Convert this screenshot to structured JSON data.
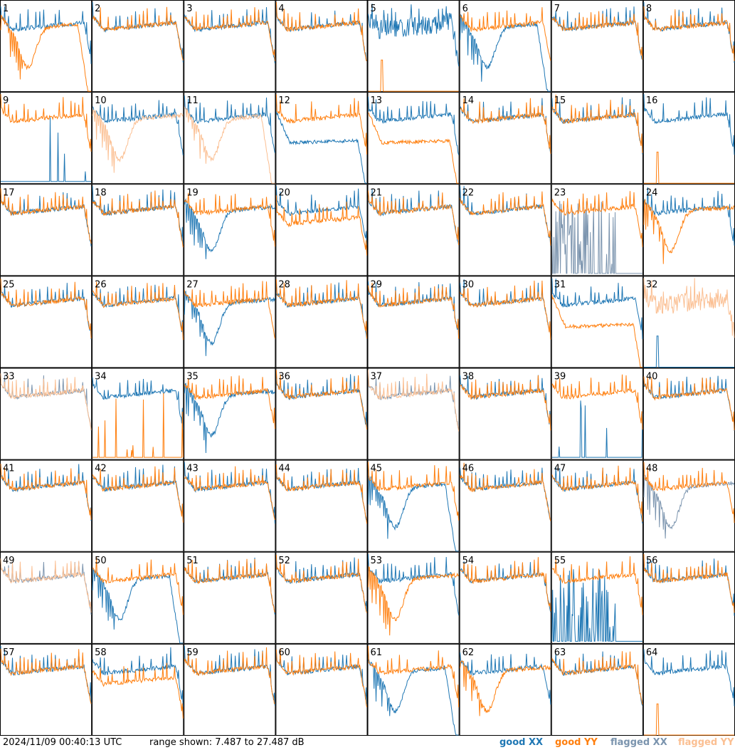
{
  "chart_data": {
    "type": "line",
    "layout": "8x8 small multiples",
    "tiles": [
      {
        "id": "1",
        "xx": "good",
        "yy": "good",
        "xx_shape": "normal",
        "yy_shape": "bumpdrop"
      },
      {
        "id": "2",
        "xx": "good",
        "yy": "good",
        "xx_shape": "normal",
        "yy_shape": "normal"
      },
      {
        "id": "3",
        "xx": "good",
        "yy": "good",
        "xx_shape": "normal",
        "yy_shape": "normal"
      },
      {
        "id": "4",
        "xx": "good",
        "yy": "good",
        "xx_shape": "normal",
        "yy_shape": "normal"
      },
      {
        "id": "5",
        "xx": "good",
        "yy": "good",
        "xx_shape": "noisy",
        "yy_shape": "flatspike"
      },
      {
        "id": "6",
        "xx": "good",
        "yy": "good",
        "xx_shape": "bumpdrop",
        "yy_shape": "normal"
      },
      {
        "id": "7",
        "xx": "good",
        "yy": "good",
        "xx_shape": "normal",
        "yy_shape": "normal"
      },
      {
        "id": "8",
        "xx": "good",
        "yy": "good",
        "xx_shape": "normal",
        "yy_shape": "normal"
      },
      {
        "id": "9",
        "xx": "good",
        "yy": "good",
        "xx_shape": "spikes",
        "yy_shape": "normal"
      },
      {
        "id": "10",
        "xx": "good",
        "yy": "flagged",
        "xx_shape": "normal",
        "yy_shape": "bump"
      },
      {
        "id": "11",
        "xx": "good",
        "yy": "flagged",
        "xx_shape": "normal",
        "yy_shape": "bumpdrop"
      },
      {
        "id": "12",
        "xx": "good",
        "yy": "good",
        "xx_shape": "lowdrop",
        "yy_shape": "normal"
      },
      {
        "id": "13",
        "xx": "good",
        "yy": "good",
        "xx_shape": "normal",
        "yy_shape": "lowdrop"
      },
      {
        "id": "14",
        "xx": "good",
        "yy": "good",
        "xx_shape": "normal",
        "yy_shape": "normal"
      },
      {
        "id": "15",
        "xx": "good",
        "yy": "good",
        "xx_shape": "normal",
        "yy_shape": "normal"
      },
      {
        "id": "16",
        "xx": "good",
        "yy": "good",
        "xx_shape": "normal",
        "yy_shape": "flatspike"
      },
      {
        "id": "17",
        "xx": "good",
        "yy": "good",
        "xx_shape": "normal",
        "yy_shape": "normal"
      },
      {
        "id": "18",
        "xx": "good",
        "yy": "good",
        "xx_shape": "normal",
        "yy_shape": "normal"
      },
      {
        "id": "19",
        "xx": "good",
        "yy": "good",
        "xx_shape": "bump",
        "yy_shape": "normal"
      },
      {
        "id": "20",
        "xx": "good",
        "yy": "good",
        "xx_shape": "normal",
        "yy_shape": "low"
      },
      {
        "id": "21",
        "xx": "good",
        "yy": "good",
        "xx_shape": "normal",
        "yy_shape": "normal"
      },
      {
        "id": "22",
        "xx": "good",
        "yy": "good",
        "xx_shape": "normal",
        "yy_shape": "normal"
      },
      {
        "id": "23",
        "xx": "flagged",
        "yy": "good",
        "xx_shape": "dense",
        "yy_shape": "normal"
      },
      {
        "id": "24",
        "xx": "good",
        "yy": "good",
        "xx_shape": "normal",
        "yy_shape": "bump"
      },
      {
        "id": "25",
        "xx": "good",
        "yy": "good",
        "xx_shape": "normal",
        "yy_shape": "normal"
      },
      {
        "id": "26",
        "xx": "good",
        "yy": "good",
        "xx_shape": "normal",
        "yy_shape": "normal"
      },
      {
        "id": "27",
        "xx": "good",
        "yy": "good",
        "xx_shape": "bump",
        "yy_shape": "normal"
      },
      {
        "id": "28",
        "xx": "good",
        "yy": "good",
        "xx_shape": "normal",
        "yy_shape": "normal"
      },
      {
        "id": "29",
        "xx": "good",
        "yy": "good",
        "xx_shape": "normal",
        "yy_shape": "normal"
      },
      {
        "id": "30",
        "xx": "good",
        "yy": "good",
        "xx_shape": "normal",
        "yy_shape": "normal"
      },
      {
        "id": "31",
        "xx": "good",
        "yy": "good",
        "xx_shape": "normal",
        "yy_shape": "lowdrop"
      },
      {
        "id": "32",
        "xx": "good",
        "yy": "flagged",
        "xx_shape": "flatspike",
        "yy_shape": "noisy"
      },
      {
        "id": "33",
        "xx": "flagged",
        "yy": "flagged",
        "xx_shape": "normal",
        "yy_shape": "normal"
      },
      {
        "id": "34",
        "xx": "good",
        "yy": "good",
        "xx_shape": "normal",
        "yy_shape": "spikes"
      },
      {
        "id": "35",
        "xx": "good",
        "yy": "good",
        "xx_shape": "bump",
        "yy_shape": "normal"
      },
      {
        "id": "36",
        "xx": "good",
        "yy": "good",
        "xx_shape": "normal",
        "yy_shape": "normal"
      },
      {
        "id": "37",
        "xx": "flagged",
        "yy": "flagged",
        "xx_shape": "normal",
        "yy_shape": "normal"
      },
      {
        "id": "38",
        "xx": "good",
        "yy": "good",
        "xx_shape": "normal",
        "yy_shape": "normal"
      },
      {
        "id": "39",
        "xx": "good",
        "yy": "good",
        "xx_shape": "spikes",
        "yy_shape": "normal"
      },
      {
        "id": "40",
        "xx": "good",
        "yy": "good",
        "xx_shape": "normal",
        "yy_shape": "normal"
      },
      {
        "id": "41",
        "xx": "good",
        "yy": "good",
        "xx_shape": "normal",
        "yy_shape": "normal"
      },
      {
        "id": "42",
        "xx": "good",
        "yy": "good",
        "xx_shape": "normal",
        "yy_shape": "normal"
      },
      {
        "id": "43",
        "xx": "good",
        "yy": "good",
        "xx_shape": "normal",
        "yy_shape": "normal"
      },
      {
        "id": "44",
        "xx": "good",
        "yy": "good",
        "xx_shape": "normal",
        "yy_shape": "normal"
      },
      {
        "id": "45",
        "xx": "good",
        "yy": "good",
        "xx_shape": "bumpdrop",
        "yy_shape": "normal"
      },
      {
        "id": "46",
        "xx": "good",
        "yy": "good",
        "xx_shape": "normal",
        "yy_shape": "normal"
      },
      {
        "id": "47",
        "xx": "good",
        "yy": "good",
        "xx_shape": "normal",
        "yy_shape": "normal"
      },
      {
        "id": "48",
        "xx": "flagged",
        "yy": "good",
        "xx_shape": "bump",
        "yy_shape": "normal"
      },
      {
        "id": "49",
        "xx": "flagged",
        "yy": "flagged",
        "xx_shape": "normal",
        "yy_shape": "normal"
      },
      {
        "id": "50",
        "xx": "good",
        "yy": "good",
        "xx_shape": "bumpdrop",
        "yy_shape": "normal"
      },
      {
        "id": "51",
        "xx": "good",
        "yy": "good",
        "xx_shape": "normal",
        "yy_shape": "normal"
      },
      {
        "id": "52",
        "xx": "good",
        "yy": "good",
        "xx_shape": "normal",
        "yy_shape": "normal"
      },
      {
        "id": "53",
        "xx": "good",
        "yy": "good",
        "xx_shape": "normal",
        "yy_shape": "bump"
      },
      {
        "id": "54",
        "xx": "good",
        "yy": "good",
        "xx_shape": "normal",
        "yy_shape": "normal"
      },
      {
        "id": "55",
        "xx": "good",
        "yy": "good",
        "xx_shape": "dense",
        "yy_shape": "normal"
      },
      {
        "id": "56",
        "xx": "good",
        "yy": "good",
        "xx_shape": "normal",
        "yy_shape": "normal"
      },
      {
        "id": "57",
        "xx": "good",
        "yy": "good",
        "xx_shape": "normal",
        "yy_shape": "normal"
      },
      {
        "id": "58",
        "xx": "good",
        "yy": "good",
        "xx_shape": "normal",
        "yy_shape": "low"
      },
      {
        "id": "59",
        "xx": "good",
        "yy": "good",
        "xx_shape": "normal",
        "yy_shape": "normal"
      },
      {
        "id": "60",
        "xx": "good",
        "yy": "good",
        "xx_shape": "normal",
        "yy_shape": "normal"
      },
      {
        "id": "61",
        "xx": "good",
        "yy": "good",
        "xx_shape": "bumpdrop",
        "yy_shape": "normal"
      },
      {
        "id": "62",
        "xx": "good",
        "yy": "good",
        "xx_shape": "normal",
        "yy_shape": "bump"
      },
      {
        "id": "63",
        "xx": "good",
        "yy": "good",
        "xx_shape": "normal",
        "yy_shape": "normal"
      },
      {
        "id": "64",
        "xx": "good",
        "yy": "good",
        "xx_shape": "normal",
        "yy_shape": "flatspike"
      }
    ],
    "range_db": [
      7.487,
      27.487
    ]
  },
  "footer": {
    "timestamp": "2024/11/09 00:40:13 UTC",
    "range_text": "range shown: 7.487 to 27.487 dB",
    "legend_good_xx": "good XX",
    "legend_good_yy": "good YY",
    "legend_flagged_xx": "flagged XX",
    "legend_flagged_yy": "flagged YY"
  },
  "colors": {
    "good_xx": "#1f77b4",
    "good_yy": "#ff7f0e",
    "flagged_xx": "#7b94ae",
    "flagged_yy": "#fbbf92"
  }
}
